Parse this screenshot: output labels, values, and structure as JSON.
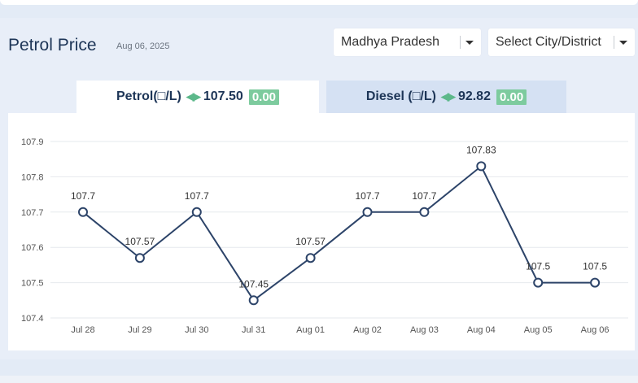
{
  "header": {
    "title": "Petrol Price",
    "date": "Aug 06, 2025"
  },
  "filters": {
    "state": "Madhya Pradesh",
    "city": "Select City/District"
  },
  "tabs": [
    {
      "label": "Petrol(□/L)",
      "price": "107.50",
      "change": "0.00",
      "active": true
    },
    {
      "label": "Diesel (□/L)",
      "price": "92.82",
      "change": "0.00",
      "active": false
    }
  ],
  "colors": {
    "line": "#2d4469",
    "change_badge": "#7dcb9e",
    "title": "#1d3557"
  },
  "chart_data": {
    "type": "line",
    "categories": [
      "Jul 28",
      "Jul 29",
      "Jul 30",
      "Jul 31",
      "Aug 01",
      "Aug 02",
      "Aug 03",
      "Aug 04",
      "Aug 05",
      "Aug 06"
    ],
    "values": [
      107.7,
      107.57,
      107.7,
      107.45,
      107.57,
      107.7,
      107.7,
      107.83,
      107.5,
      107.5
    ],
    "data_labels": [
      "107.7",
      "107.57",
      "107.7",
      "107.45",
      "107.57",
      "107.7",
      "107.7",
      "107.83",
      "107.5",
      "107.5"
    ],
    "y_ticks": [
      "107.4",
      "107.5",
      "107.6",
      "107.7",
      "107.8",
      "107.9"
    ],
    "ylim": [
      107.4,
      107.9
    ],
    "grid": true
  }
}
